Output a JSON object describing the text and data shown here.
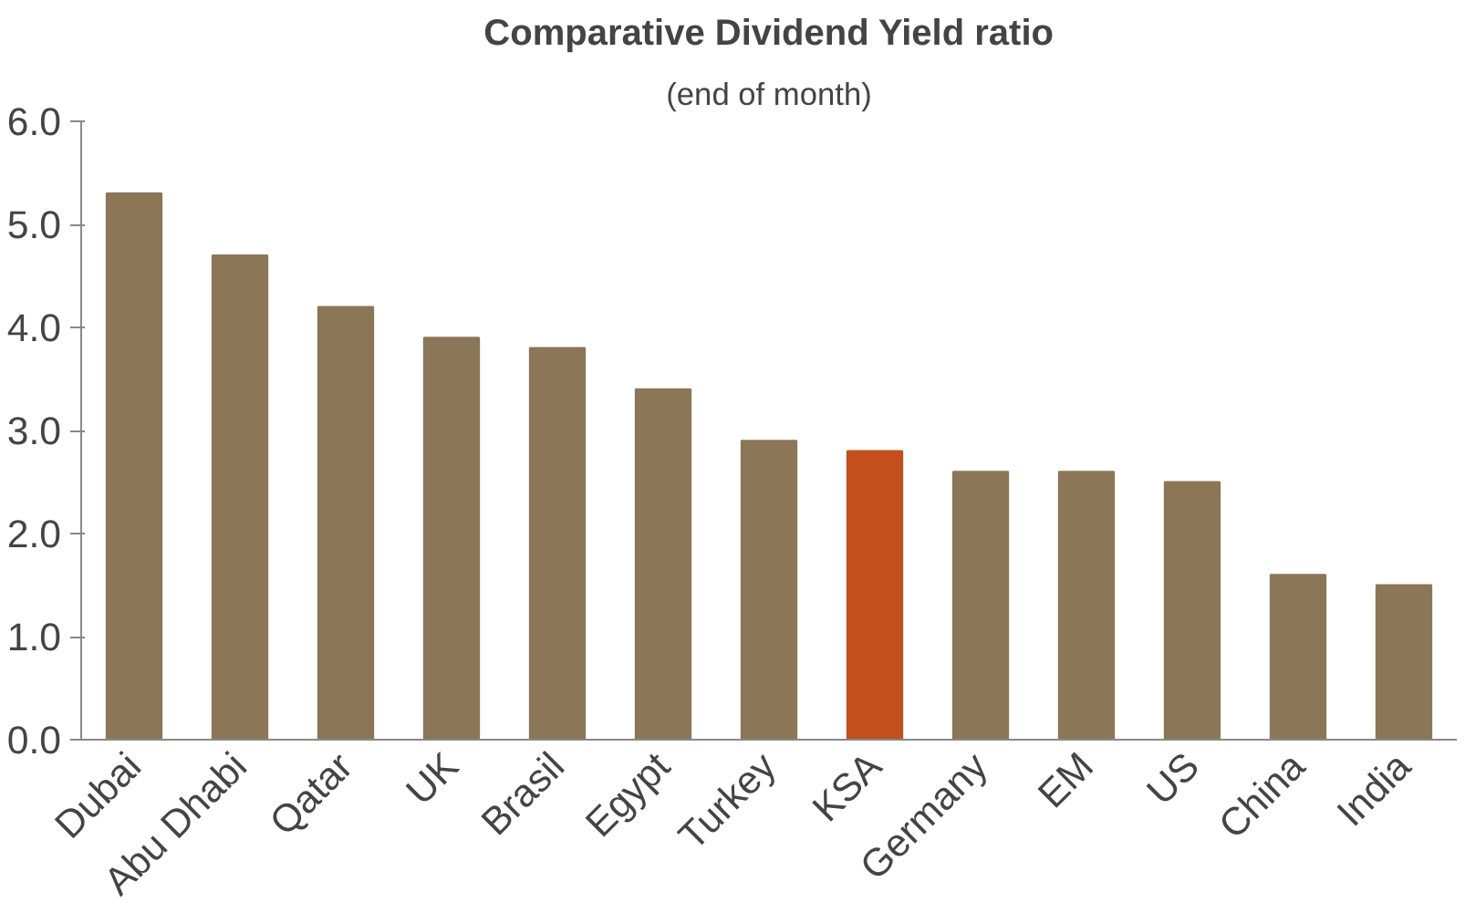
{
  "chart_data": {
    "type": "bar",
    "title": "Comparative Dividend Yield ratio",
    "subtitle": "(end of month)",
    "categories": [
      "Dubai",
      "Abu Dhabi",
      "Qatar",
      "UK",
      "Brasil",
      "Egypt",
      "Turkey",
      "KSA",
      "Germany",
      "EM",
      "US",
      "China",
      "India"
    ],
    "values": [
      5.3,
      4.7,
      4.2,
      3.9,
      3.8,
      3.4,
      2.9,
      2.8,
      2.6,
      2.6,
      2.5,
      1.6,
      1.5
    ],
    "colors": [
      "#8b7657",
      "#8b7657",
      "#8b7657",
      "#8b7657",
      "#8b7657",
      "#8b7657",
      "#8b7657",
      "#c24f1c",
      "#8b7657",
      "#8b7657",
      "#8b7657",
      "#8b7657",
      "#8b7657"
    ],
    "ylim": [
      0,
      6
    ],
    "yticks": [
      {
        "value": 0,
        "label": "0.0"
      },
      {
        "value": 1,
        "label": "1.0"
      },
      {
        "value": 2,
        "label": "2.0"
      },
      {
        "value": 3,
        "label": "3.0"
      },
      {
        "value": 4,
        "label": "4.0"
      },
      {
        "value": 5,
        "label": "5.0"
      },
      {
        "value": 6,
        "label": "6.0"
      }
    ],
    "grid": false
  }
}
